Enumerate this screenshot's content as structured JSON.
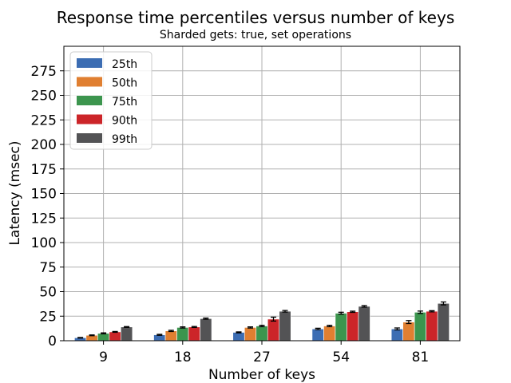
{
  "chart_data": {
    "type": "bar",
    "title": "Response time percentiles versus number of keys",
    "subtitle": "Sharded gets: true, set operations",
    "xlabel": "Number of keys",
    "ylabel": "Latency (msec)",
    "categories": [
      "9",
      "18",
      "27",
      "54",
      "81"
    ],
    "ylim": [
      0,
      300
    ],
    "yticks": [
      0,
      25,
      50,
      75,
      100,
      125,
      150,
      175,
      200,
      225,
      250,
      275
    ],
    "grid": true,
    "legend_position": "upper-left",
    "error_bars": true,
    "series": [
      {
        "name": "25th",
        "color": "#3c6db3",
        "values": [
          3,
          6,
          8.5,
          12,
          12
        ],
        "errors": [
          0.3,
          0.5,
          0.5,
          0.7,
          1.0
        ]
      },
      {
        "name": "50th",
        "color": "#e07f31",
        "values": [
          5.5,
          10,
          13.5,
          15,
          19
        ],
        "errors": [
          0.4,
          0.6,
          0.6,
          0.7,
          1.5
        ]
      },
      {
        "name": "75th",
        "color": "#3c954e",
        "values": [
          7.5,
          13.5,
          15,
          28,
          29
        ],
        "errors": [
          0.5,
          0.6,
          0.7,
          1.0,
          1.2
        ]
      },
      {
        "name": "90th",
        "color": "#cc2529",
        "values": [
          9,
          14,
          22,
          29.5,
          30
        ],
        "errors": [
          0.4,
          0.5,
          2.0,
          0.6,
          0.6
        ]
      },
      {
        "name": "99th",
        "color": "#535355",
        "values": [
          14,
          22.5,
          30,
          35,
          38
        ],
        "errors": [
          0.4,
          0.6,
          0.8,
          0.8,
          1.5
        ]
      }
    ]
  }
}
